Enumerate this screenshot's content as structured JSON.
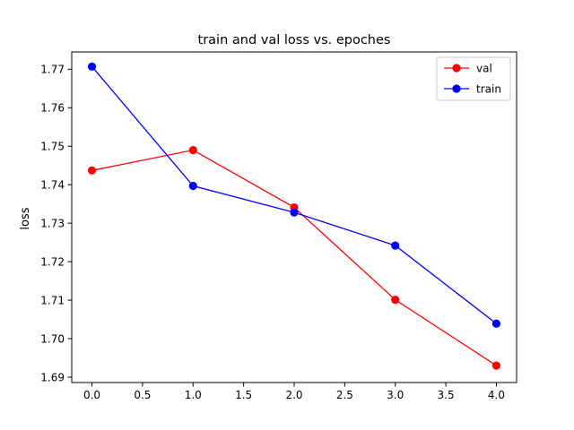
{
  "chart_data": {
    "type": "line",
    "title": "train and val loss vs. epoches",
    "xlabel": "",
    "ylabel": "loss",
    "xlim": [
      -0.2,
      4.2
    ],
    "ylim": [
      1.6886,
      1.7745
    ],
    "x_ticks": [
      "0.0",
      "0.5",
      "1.0",
      "1.5",
      "2.0",
      "2.5",
      "3.0",
      "3.5",
      "4.0"
    ],
    "y_ticks": [
      "1.69",
      "1.70",
      "1.71",
      "1.72",
      "1.73",
      "1.74",
      "1.75",
      "1.76",
      "1.77"
    ],
    "grid": false,
    "legend_position": "top-right",
    "x": [
      0,
      1,
      2,
      3,
      4
    ],
    "series": [
      {
        "name": "val",
        "color": "#ff0000",
        "values": [
          1.7437,
          1.749,
          1.7341,
          1.7101,
          1.693
        ]
      },
      {
        "name": "train",
        "color": "#0000ff",
        "values": [
          1.7707,
          1.7397,
          1.7328,
          1.7242,
          1.7039
        ]
      }
    ]
  }
}
